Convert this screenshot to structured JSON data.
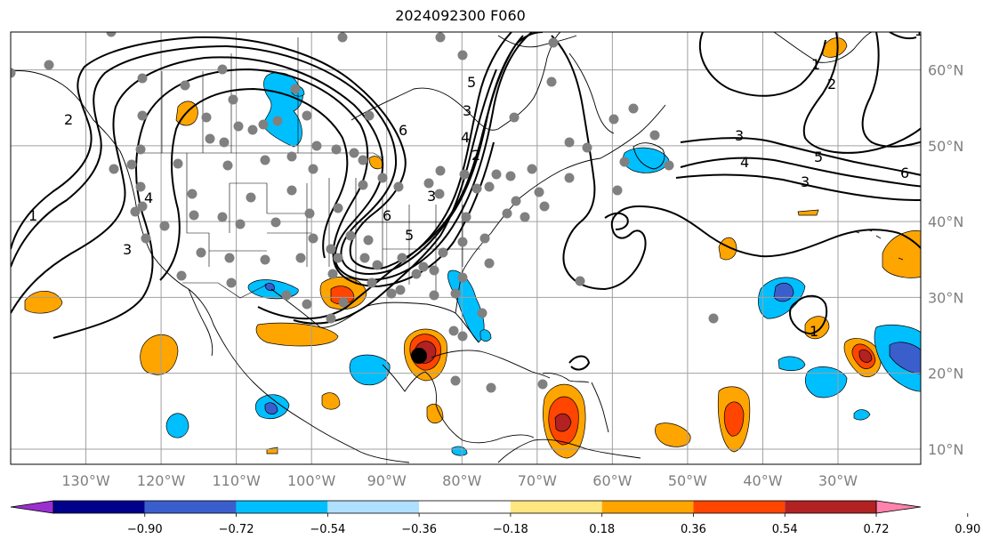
{
  "title": "2024092300 F060",
  "map": {
    "lon_range": [
      -140,
      -19
    ],
    "lat_range": [
      8,
      65
    ],
    "lon_ticks": [
      "130°W",
      "120°W",
      "110°W",
      "100°W",
      "90°W",
      "80°W",
      "70°W",
      "60°W",
      "50°W",
      "40°W",
      "30°W"
    ],
    "lon_tick_values": [
      -130,
      -120,
      -110,
      -100,
      -90,
      -80,
      -70,
      -60,
      -50,
      -40,
      -30
    ],
    "lat_ticks": [
      "10°N",
      "20°N",
      "30°N",
      "40°N",
      "50°N",
      "60°N"
    ],
    "lat_tick_values": [
      10,
      20,
      30,
      40,
      50,
      60
    ],
    "grid": true
  },
  "colorbar": {
    "labels": [
      "−0.90",
      "−0.72",
      "−0.54",
      "−0.36",
      "−0.18",
      "0.18",
      "0.36",
      "0.54",
      "0.72",
      "0.90"
    ],
    "colors": [
      "#9b30d0",
      "#00008b",
      "#3a5fcd",
      "#00bfff",
      "#b0e0ff",
      "#ffffff",
      "#ffe680",
      "#ffa500",
      "#ff4500",
      "#b22222",
      "#ff82ab"
    ],
    "extend": "both"
  },
  "contour_labels": [
    "1",
    "2",
    "3",
    "4",
    "5",
    "6",
    "1",
    "2",
    "3",
    "4",
    "5",
    "6",
    "1",
    "3",
    "6",
    "5",
    "3",
    "4",
    "3",
    "2",
    "1",
    "1",
    "6"
  ],
  "colors": {
    "station": "#808080",
    "storm": "#000000"
  }
}
